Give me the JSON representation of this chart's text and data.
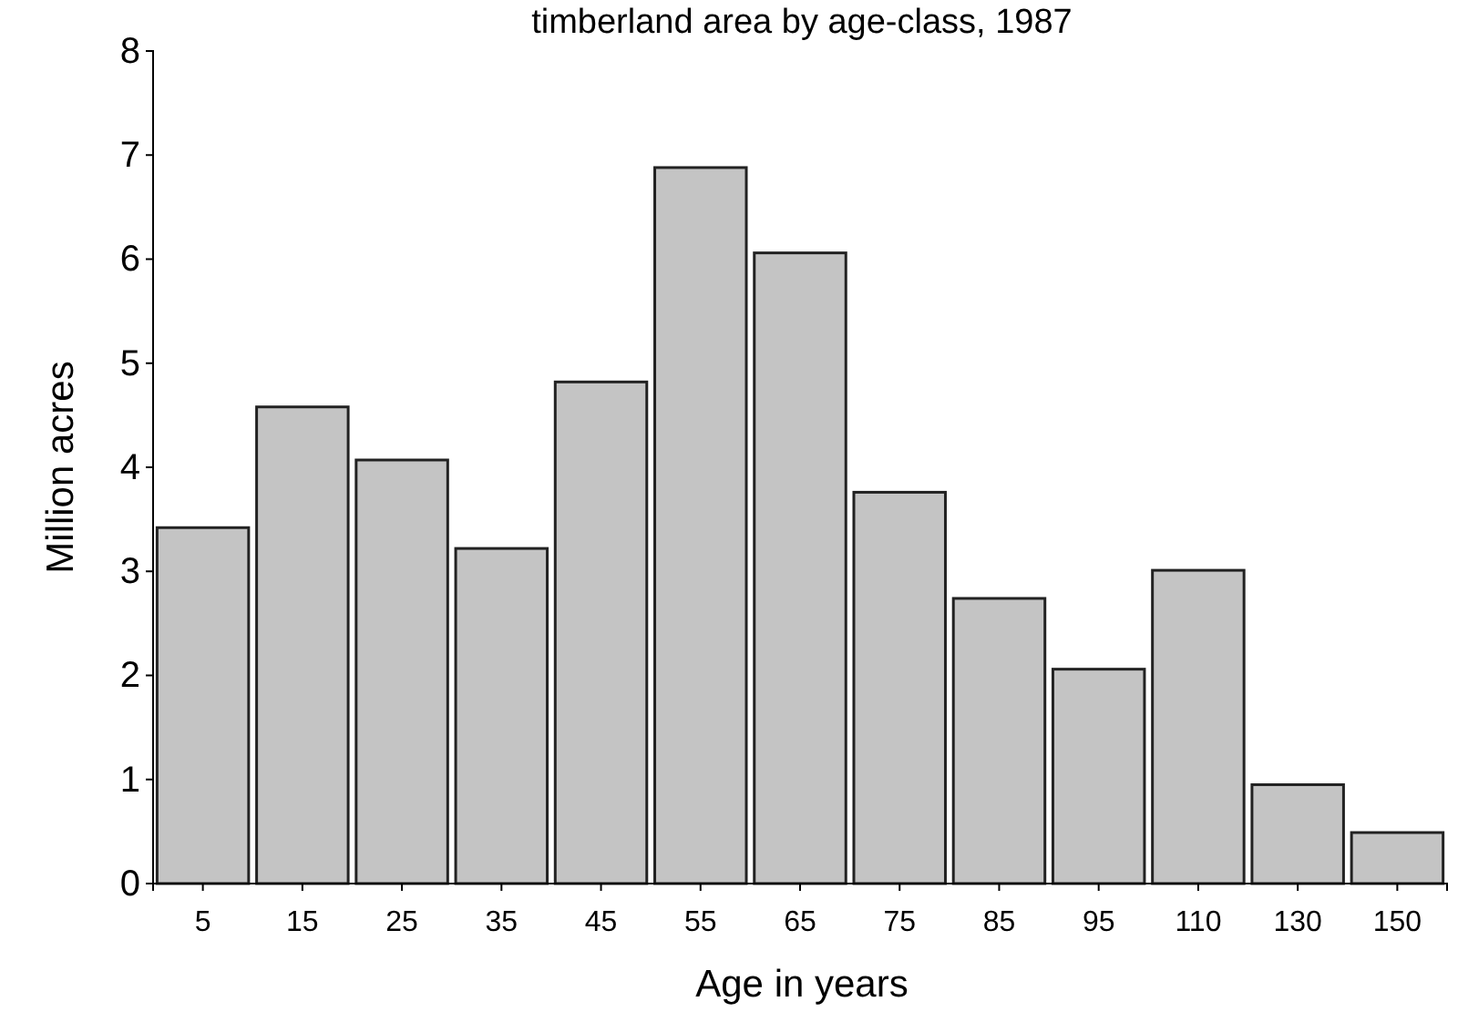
{
  "chart_data": {
    "type": "bar",
    "title": "timberland area by age-class, 1987",
    "xlabel": "Age in years",
    "ylabel": "Million acres",
    "categories": [
      "5",
      "15",
      "25",
      "35",
      "45",
      "55",
      "65",
      "75",
      "85",
      "95",
      "110",
      "130",
      "150"
    ],
    "values": [
      3.42,
      4.58,
      4.07,
      3.22,
      4.82,
      6.88,
      6.06,
      3.76,
      2.74,
      2.06,
      3.01,
      0.95,
      0.49
    ],
    "color": "#c4c4c4",
    "ylim": [
      0,
      8
    ],
    "yticks": [
      0,
      1,
      2,
      3,
      4,
      5,
      6,
      7,
      8
    ],
    "grid": false
  }
}
